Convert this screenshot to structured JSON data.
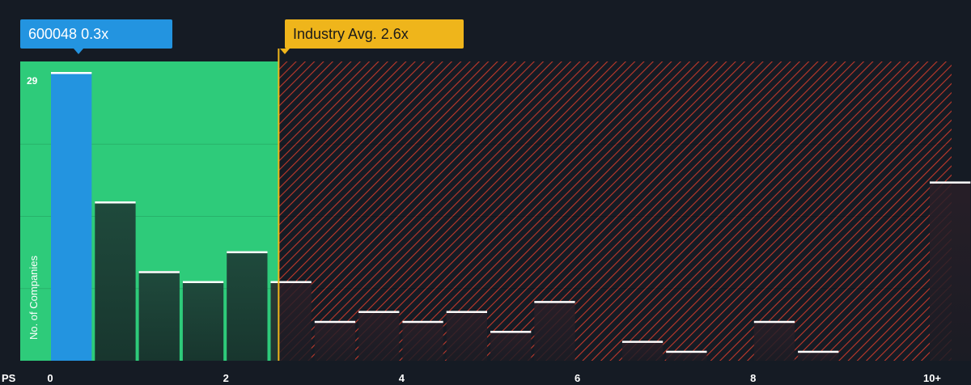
{
  "chart_data": {
    "type": "bar",
    "x_axis_label": "PS",
    "y_axis_label": "No. of Companies",
    "y_max_label": "29",
    "ylim": [
      0,
      29
    ],
    "xlim": [
      0,
      10.2
    ],
    "x_ticks": [
      {
        "value": 0,
        "label": "0"
      },
      {
        "value": 2,
        "label": "2"
      },
      {
        "value": 4,
        "label": "4"
      },
      {
        "value": 6,
        "label": "6"
      },
      {
        "value": 8,
        "label": "8"
      },
      {
        "value": 10,
        "label": "10+"
      }
    ],
    "bin_width": 0.5,
    "bins": [
      {
        "start": 0.0,
        "count": 29,
        "highlight": true
      },
      {
        "start": 0.5,
        "count": 16
      },
      {
        "start": 1.0,
        "count": 9
      },
      {
        "start": 1.5,
        "count": 8
      },
      {
        "start": 2.0,
        "count": 11
      },
      {
        "start": 2.5,
        "count": 8
      },
      {
        "start": 3.0,
        "count": 4
      },
      {
        "start": 3.5,
        "count": 5
      },
      {
        "start": 4.0,
        "count": 4
      },
      {
        "start": 4.5,
        "count": 5
      },
      {
        "start": 5.0,
        "count": 3
      },
      {
        "start": 5.5,
        "count": 6
      },
      {
        "start": 6.0,
        "count": 0
      },
      {
        "start": 6.5,
        "count": 2
      },
      {
        "start": 7.0,
        "count": 1
      },
      {
        "start": 7.5,
        "count": 0
      },
      {
        "start": 8.0,
        "count": 4
      },
      {
        "start": 8.5,
        "count": 1
      },
      {
        "start": 9.0,
        "count": 0
      },
      {
        "start": 9.5,
        "count": 0
      },
      {
        "start": 10.0,
        "count": 18
      }
    ],
    "company": {
      "label": "600048 0.3x",
      "value": 0.3
    },
    "industry_avg": {
      "label": "Industry Avg. 2.6x",
      "value": 2.6
    }
  },
  "colors": {
    "background": "#151b24",
    "highlight_bar": "#2394e0",
    "fair_region": "#2ecb7a",
    "bar_dark": "#1f4a3c",
    "overvalued_hatch": "#c0392b",
    "industry_line": "#efb51b",
    "bar_cap": "#ffffff"
  }
}
